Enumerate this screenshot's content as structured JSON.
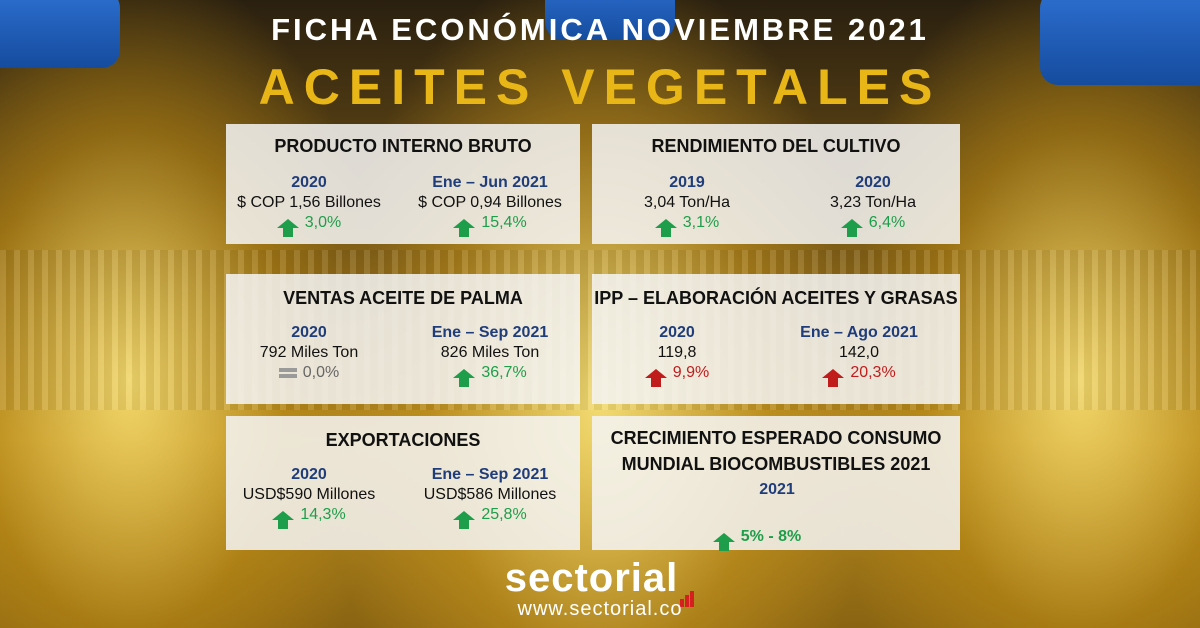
{
  "header": {
    "title": "FICHA ECONÓMICA NOVIEMBRE 2021",
    "subtitle": "ACEITES VEGETALES"
  },
  "panels": {
    "pib": {
      "title": "PRODUCTO INTERNO BRUTO",
      "left": {
        "period": "2020",
        "value": "$ COP 1,56 Billones",
        "change": "3,0%",
        "trend": "up"
      },
      "right": {
        "period": "Ene – Jun 2021",
        "value": "$ COP 0,94 Billones",
        "change": "15,4%",
        "trend": "up"
      }
    },
    "rendimiento": {
      "title": "RENDIMIENTO DEL CULTIVO",
      "left": {
        "period": "2019",
        "value": "3,04 Ton/Ha",
        "change": "3,1%",
        "trend": "up"
      },
      "right": {
        "period": "2020",
        "value": "3,23 Ton/Ha",
        "change": "6,4%",
        "trend": "up"
      }
    },
    "ventas": {
      "title": "VENTAS ACEITE DE PALMA",
      "left": {
        "period": "2020",
        "value": "792 Miles Ton",
        "change": "0,0%",
        "trend": "flat"
      },
      "right": {
        "period": "Ene – Sep 2021",
        "value": "826 Miles Ton",
        "change": "36,7%",
        "trend": "up"
      }
    },
    "ipp": {
      "title": "IPP – ELABORACIÓN ACEITES Y GRASAS",
      "left": {
        "period": "2020",
        "value": "119,8",
        "change": "9,9%",
        "trend": "up-red"
      },
      "right": {
        "period": "Ene – Ago 2021",
        "value": "142,0",
        "change": "20,3%",
        "trend": "up-red"
      }
    },
    "exportaciones": {
      "title": "EXPORTACIONES",
      "left": {
        "period": "2020",
        "value": "USD$590 Millones",
        "change": "14,3%",
        "trend": "up"
      },
      "right": {
        "period": "Ene – Sep 2021",
        "value": "USD$586 Millones",
        "change": "25,8%",
        "trend": "up"
      }
    },
    "biocombustibles": {
      "title_line1": "CRECIMIENTO ESPERADO CONSUMO",
      "title_line2": "MUNDIAL BIOCOMBUSTIBLES 2021",
      "period": "2021",
      "change": "5% - 8%",
      "trend": "up"
    }
  },
  "colors": {
    "title_gold": "#e8b717",
    "period_blue": "#1f3d7a",
    "up_green": "#1e9e4a",
    "up_red": "#c01c1c",
    "flat_gray": "#9a9a9a",
    "logo_red": "#d62020"
  },
  "footer": {
    "logo": "sectorial",
    "url": "www.sectorial.co"
  }
}
